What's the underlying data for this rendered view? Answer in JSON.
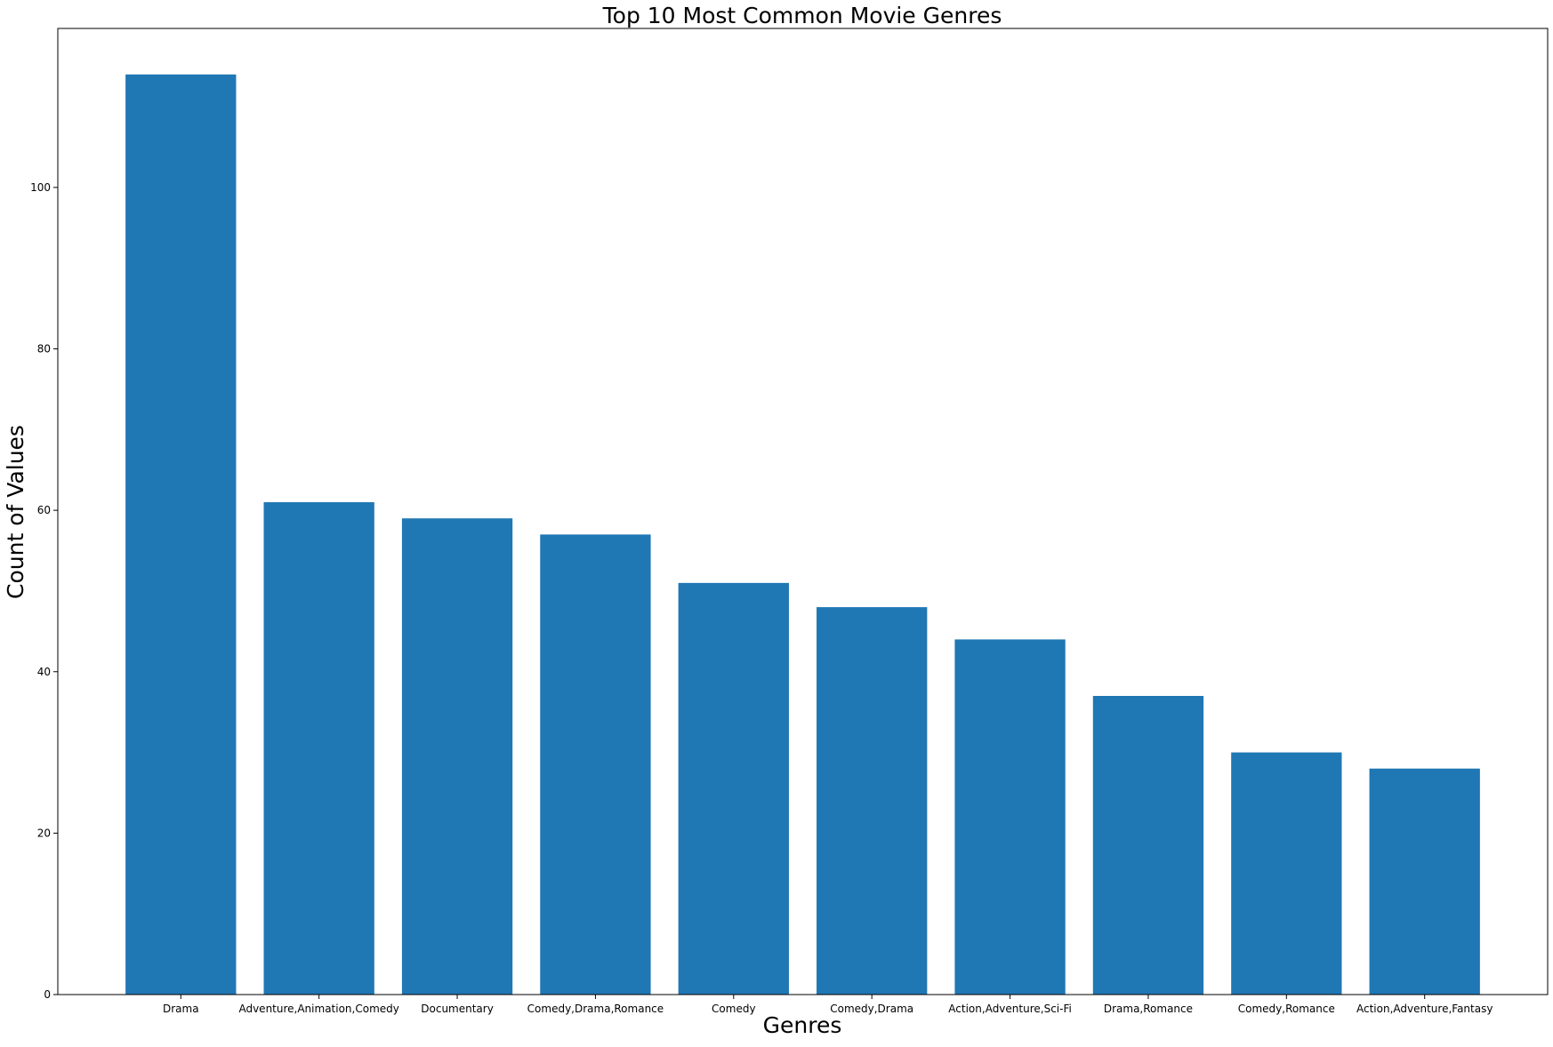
{
  "chart_data": {
    "type": "bar",
    "title": "Top 10 Most Common Movie Genres",
    "xlabel": "Genres",
    "ylabel": "Count of Values",
    "categories": [
      "Drama",
      "Adventure,Animation,Comedy",
      "Documentary",
      "Comedy,Drama,Romance",
      "Comedy",
      "Comedy,Drama",
      "Action,Adventure,Sci-Fi",
      "Drama,Romance",
      "Comedy,Romance",
      "Action,Adventure,Fantasy"
    ],
    "values": [
      114,
      61,
      59,
      57,
      51,
      48,
      44,
      37,
      30,
      28
    ],
    "ylim": [
      0,
      119.7
    ],
    "yticks": [
      0,
      20,
      40,
      60,
      80,
      100
    ],
    "grid": false,
    "bar_color": "#1f77b4"
  }
}
